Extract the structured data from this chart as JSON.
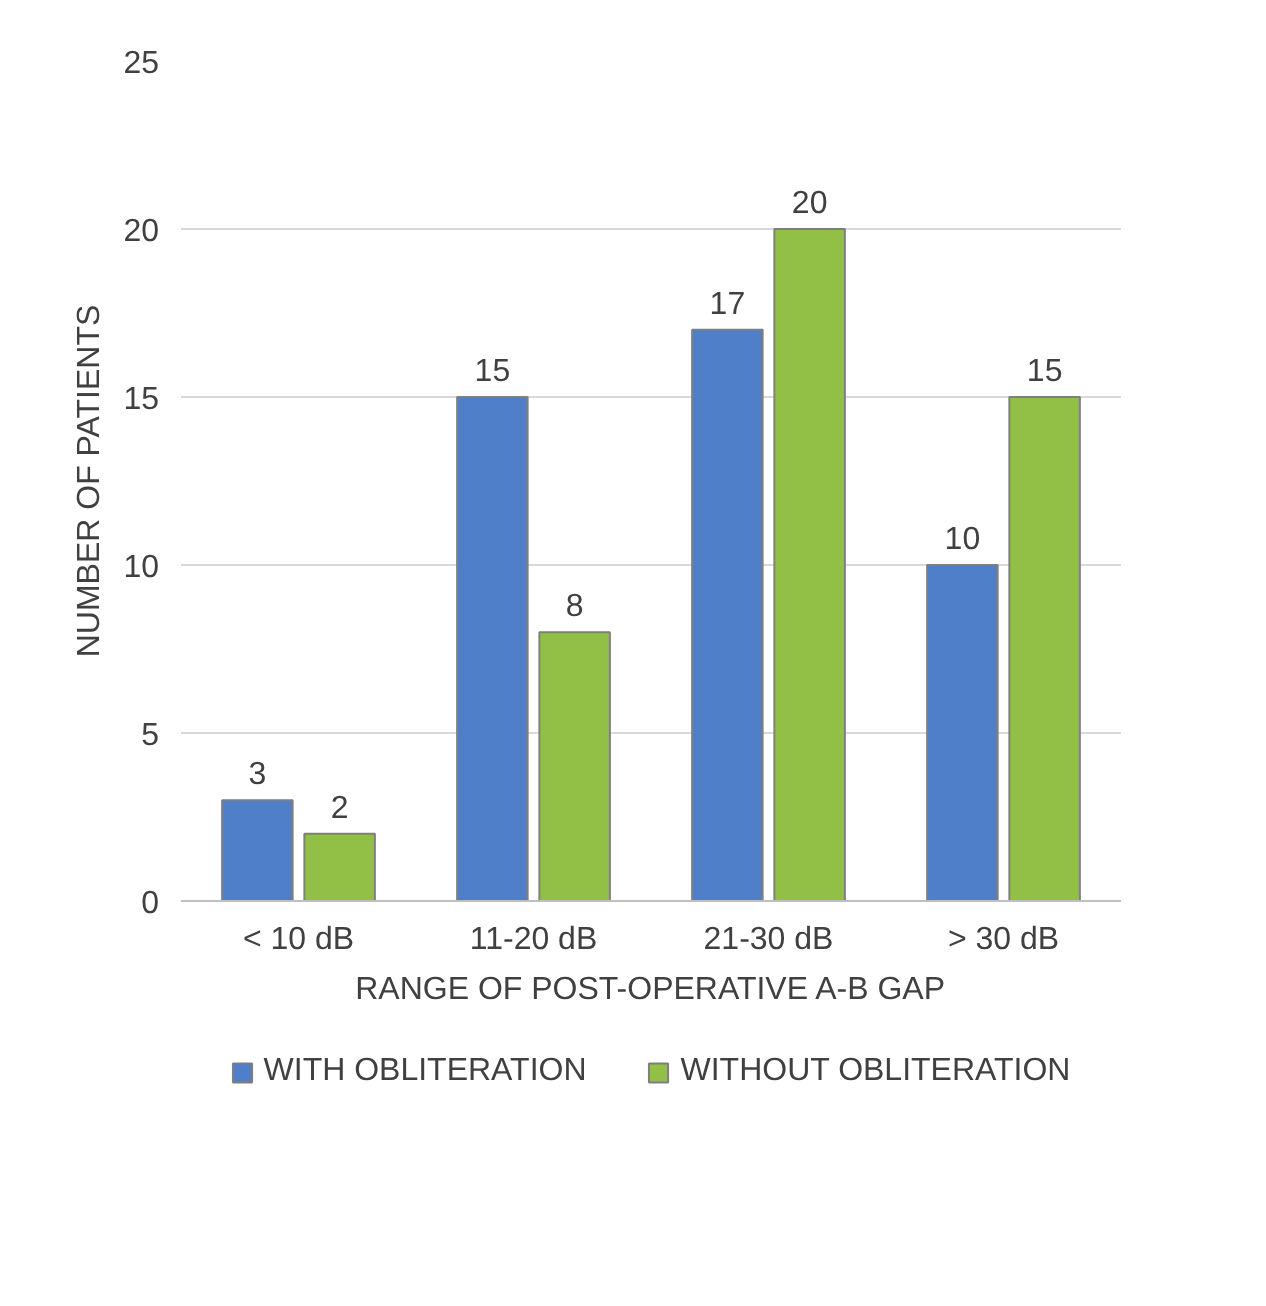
{
  "chart_data": {
    "type": "bar",
    "xlabel": "RANGE OF POST-OPERATIVE A-B GAP",
    "ylabel": "NUMBER OF PATIENTS",
    "categories": [
      "< 10 dB",
      "11-20 dB",
      "21-30 dB",
      "> 30 dB"
    ],
    "series": [
      {
        "name": "WITH OBLITERATION",
        "color": "#4f7fc9",
        "values": [
          3,
          15,
          17,
          10
        ]
      },
      {
        "name": "WITHOUT OBLITERATION",
        "color": "#92c047",
        "values": [
          2,
          8,
          20,
          15
        ]
      }
    ],
    "ylim": [
      0,
      25
    ],
    "yticks": [
      0,
      5,
      10,
      15,
      20,
      25
    ],
    "grid": "y",
    "legend": "bottom",
    "data_labels": true
  }
}
